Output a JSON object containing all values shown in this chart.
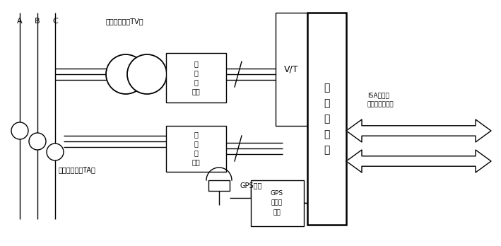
{
  "bg": "#ffffff",
  "lc": "#000000",
  "lw": 1.0,
  "fw": 7.09,
  "fh": 3.48,
  "tv_text": "电压互感器（TV）",
  "ta_text": "电流互感器（TA）",
  "gps_ant_text": "GPS天线",
  "volt_box_L1": "电",
  "volt_box_L2": "压",
  "volt_box_L3": "发",
  "volt_box_L4": "送器",
  "curr_box_L1": "电",
  "curr_box_L2": "流",
  "curr_box_L3": "发",
  "curr_box_L4": "送器",
  "gps_box_L1": "GPS",
  "gps_box_L2": "信号接",
  "gps_box_L3": "收模",
  "vt_text": "V/T",
  "dac_L1": "数",
  "dac_L2": "据",
  "dac_L3": "采",
  "dac_L4": "集",
  "dac_L5": "卡",
  "isa_L1": "ISA总线接",
  "isa_L2": "工业控制计算机"
}
